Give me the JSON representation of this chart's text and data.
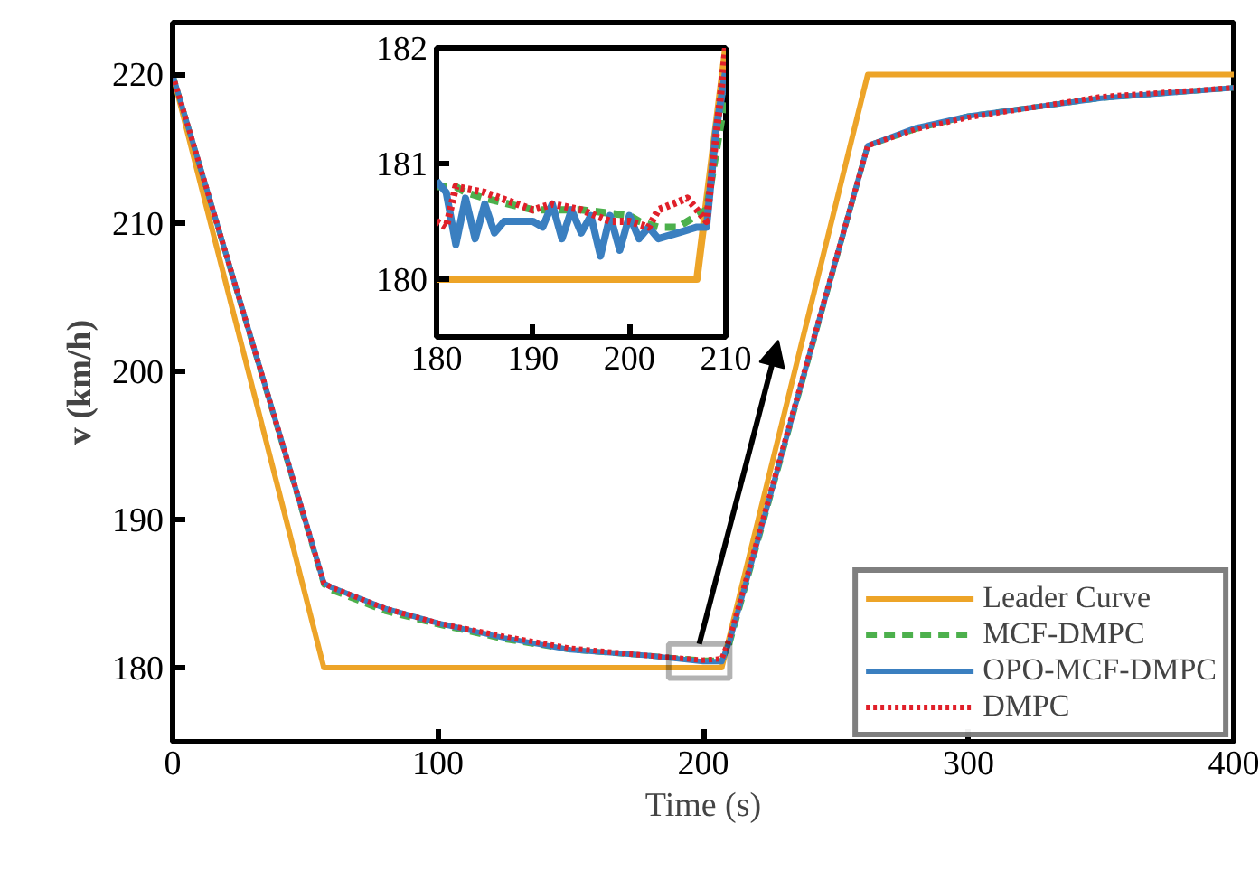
{
  "chart_data": [
    {
      "type": "line",
      "xlabel": "Time (s)",
      "ylabel": "v (km/h)",
      "xlim": [
        0,
        400
      ],
      "ylim": [
        175,
        223.5
      ],
      "xticks": [
        0,
        100,
        200,
        300,
        400
      ],
      "yticks": [
        180,
        190,
        200,
        210,
        220
      ],
      "grid": false,
      "legend": "bottom right",
      "series": [
        {
          "name": "Leader Curve",
          "color": "#eda428",
          "line_style": "solid",
          "x": [
            0,
            57,
            207,
            262,
            400
          ],
          "values": [
            220,
            180,
            180,
            220,
            220
          ]
        },
        {
          "name": "MCF-DMPC",
          "color": "#4cb04c",
          "line_style": "dashed",
          "x": [
            0,
            57,
            60,
            80,
            100,
            125,
            150,
            180,
            200,
            207,
            210,
            262,
            280,
            300,
            350,
            400
          ],
          "values": [
            220,
            185.6,
            185.2,
            183.8,
            182.9,
            181.9,
            181.2,
            180.8,
            180.5,
            180.5,
            181.6,
            215.2,
            216.3,
            217.2,
            218.4,
            219.1
          ]
        },
        {
          "name": "OPO-MCF-DMPC",
          "color": "#3a7fc0",
          "line_style": "solid",
          "x": [
            0,
            57,
            60,
            80,
            100,
            125,
            150,
            180,
            200,
            207,
            210,
            262,
            280,
            300,
            350,
            400
          ],
          "values": [
            220,
            185.7,
            185.4,
            184.0,
            183.0,
            182.0,
            181.2,
            180.8,
            180.4,
            180.4,
            181.8,
            215.2,
            216.4,
            217.2,
            218.4,
            219.1
          ]
        },
        {
          "name": "DMPC",
          "color": "#e0202a",
          "line_style": "dotted",
          "x": [
            0,
            57,
            60,
            80,
            100,
            125,
            150,
            180,
            200,
            207,
            210,
            262,
            280,
            300,
            350,
            400
          ],
          "values": [
            220,
            185.7,
            185.4,
            184.0,
            183.0,
            182.1,
            181.3,
            180.8,
            180.5,
            180.6,
            182.0,
            215.2,
            216.3,
            217.1,
            218.5,
            219.1
          ]
        }
      ]
    },
    {
      "type": "line",
      "xlim": [
        180,
        210
      ],
      "ylim": [
        179.5,
        182
      ],
      "xticks": [
        180,
        190,
        200,
        210
      ],
      "yticks": [
        180,
        181,
        182
      ],
      "grid": false,
      "legend": false,
      "series": [
        {
          "color": "#eda428",
          "line_style": "solid",
          "x": [
            180,
            207,
            210
          ],
          "values": [
            180,
            180,
            182
          ]
        },
        {
          "color": "#4cb04c",
          "line_style": "dashed",
          "x": [
            180,
            182,
            183,
            185,
            190,
            195,
            200,
            201,
            203,
            205,
            207,
            208,
            210
          ],
          "values": [
            180.8,
            180.8,
            180.75,
            180.7,
            180.6,
            180.6,
            180.55,
            180.5,
            180.45,
            180.45,
            180.55,
            180.6,
            181.6
          ]
        },
        {
          "color": "#3a7fc0",
          "line_style": "solid",
          "x": [
            180,
            181,
            182,
            183,
            184,
            185,
            186,
            187,
            190,
            191,
            192,
            193,
            194,
            195,
            196,
            197,
            198,
            199,
            200,
            201,
            202,
            203,
            205,
            207,
            208,
            209,
            210
          ],
          "values": [
            180.85,
            180.75,
            180.3,
            180.7,
            180.35,
            180.65,
            180.4,
            180.5,
            180.5,
            180.45,
            180.65,
            180.35,
            180.6,
            180.4,
            180.55,
            180.2,
            180.55,
            180.25,
            180.55,
            180.35,
            180.45,
            180.35,
            180.4,
            180.45,
            180.45,
            181.3,
            181.8
          ]
        },
        {
          "color": "#e0202a",
          "line_style": "dotted",
          "x": [
            180,
            181,
            182,
            185,
            190,
            192,
            195,
            198,
            200,
            202,
            203,
            206,
            207,
            208,
            210
          ],
          "values": [
            180.5,
            180.45,
            180.8,
            180.75,
            180.6,
            180.65,
            180.6,
            180.5,
            180.5,
            180.45,
            180.6,
            180.7,
            180.6,
            180.5,
            182
          ]
        }
      ]
    }
  ]
}
